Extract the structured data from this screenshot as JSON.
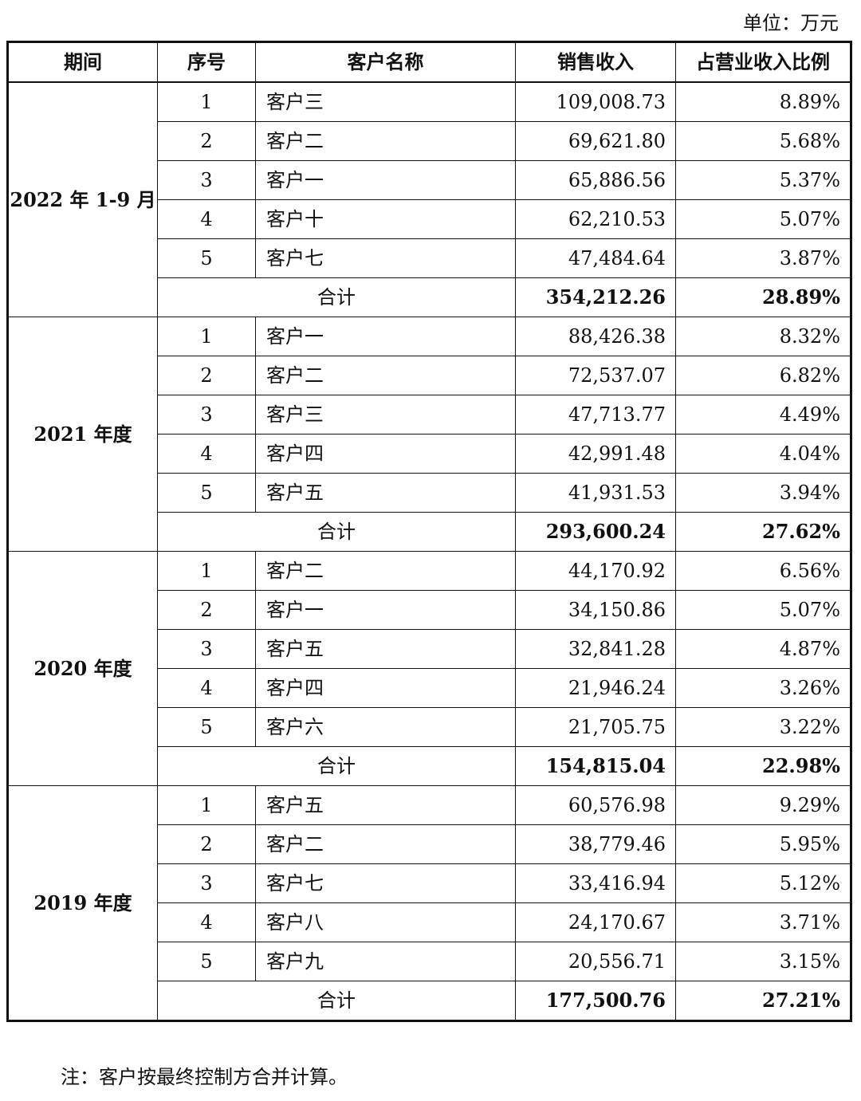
{
  "unit_label": "单位：万元",
  "headers": [
    "期间",
    "序号",
    "客户名称",
    "销售收入",
    "占营业收入比例"
  ],
  "groups": [
    {
      "period": "2022 年 1-9 月",
      "rows": [
        {
          "seq": "1",
          "name": "客户三",
          "revenue": "109,008.73",
          "ratio": "8.89%"
        },
        {
          "seq": "2",
          "name": "客户二",
          "revenue": "69,621.80",
          "ratio": "5.68%"
        },
        {
          "seq": "3",
          "name": "客户一",
          "revenue": "65,886.56",
          "ratio": "5.37%"
        },
        {
          "seq": "4",
          "name": "客户十",
          "revenue": "62,210.53",
          "ratio": "5.07%"
        },
        {
          "seq": "5",
          "name": "客户七",
          "revenue": "47,484.64",
          "ratio": "3.87%"
        }
      ],
      "total": {
        "label": "合计",
        "revenue": "354,212.26",
        "ratio": "28.89%"
      }
    },
    {
      "period": "2021 年度",
      "rows": [
        {
          "seq": "1",
          "name": "客户一",
          "revenue": "88,426.38",
          "ratio": "8.32%"
        },
        {
          "seq": "2",
          "name": "客户二",
          "revenue": "72,537.07",
          "ratio": "6.82%"
        },
        {
          "seq": "3",
          "name": "客户三",
          "revenue": "47,713.77",
          "ratio": "4.49%"
        },
        {
          "seq": "4",
          "name": "客户四",
          "revenue": "42,991.48",
          "ratio": "4.04%"
        },
        {
          "seq": "5",
          "name": "客户五",
          "revenue": "41,931.53",
          "ratio": "3.94%"
        }
      ],
      "total": {
        "label": "合计",
        "revenue": "293,600.24",
        "ratio": "27.62%"
      }
    },
    {
      "period": "2020 年度",
      "rows": [
        {
          "seq": "1",
          "name": "客户二",
          "revenue": "44,170.92",
          "ratio": "6.56%"
        },
        {
          "seq": "2",
          "name": "客户一",
          "revenue": "34,150.86",
          "ratio": "5.07%"
        },
        {
          "seq": "3",
          "name": "客户五",
          "revenue": "32,841.28",
          "ratio": "4.87%"
        },
        {
          "seq": "4",
          "name": "客户四",
          "revenue": "21,946.24",
          "ratio": "3.26%"
        },
        {
          "seq": "5",
          "name": "客户六",
          "revenue": "21,705.75",
          "ratio": "3.22%"
        }
      ],
      "total": {
        "label": "合计",
        "revenue": "154,815.04",
        "ratio": "22.98%"
      }
    },
    {
      "period": "2019 年度",
      "rows": [
        {
          "seq": "1",
          "name": "客户五",
          "revenue": "60,576.98",
          "ratio": "9.29%"
        },
        {
          "seq": "2",
          "name": "客户二",
          "revenue": "38,779.46",
          "ratio": "5.95%"
        },
        {
          "seq": "3",
          "name": "客户七",
          "revenue": "33,416.94",
          "ratio": "5.12%"
        },
        {
          "seq": "4",
          "name": "客户八",
          "revenue": "24,170.67",
          "ratio": "3.71%"
        },
        {
          "seq": "5",
          "name": "客户九",
          "revenue": "20,556.71",
          "ratio": "3.15%"
        }
      ],
      "total": {
        "label": "合计",
        "revenue": "177,500.76",
        "ratio": "27.21%"
      }
    }
  ],
  "note": "注：客户按最终控制方合并计算。"
}
